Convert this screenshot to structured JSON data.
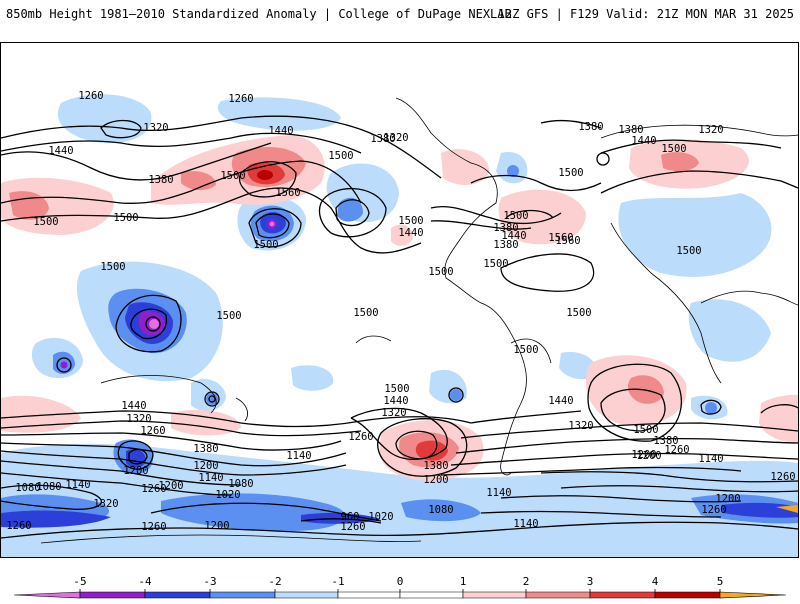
{
  "header": {
    "title": "850mb Height 1981–2010 Standardized Anomaly | College of DuPage NEXLAB",
    "run": "12Z GFS | F129 Valid: 21Z MON MAR 31 2025"
  },
  "colors": {
    "neg5": "#e070e0",
    "neg4": "#8f1fc8",
    "neg3": "#2c3fd8",
    "neg2": "#5b8ff0",
    "neg1": "#bcdcfc",
    "pos1": "#fcd0d0",
    "pos2": "#f08a8a",
    "pos3": "#e03a3a",
    "pos4": "#b80000",
    "pos5": "#f5a623",
    "line": "#000000"
  },
  "colorbar": {
    "ticks": [
      "-5",
      "-4",
      "-3",
      "-2",
      "-1",
      "0",
      "1",
      "2",
      "3",
      "4",
      "5"
    ]
  },
  "contour_labels": [
    {
      "text": "1260"
    },
    {
      "text": "1260"
    },
    {
      "text": "1320"
    },
    {
      "text": "1440"
    },
    {
      "text": "1380"
    },
    {
      "text": "1320"
    },
    {
      "text": "1380"
    },
    {
      "text": "1380"
    },
    {
      "text": "1440"
    },
    {
      "text": "1320"
    },
    {
      "text": "1440"
    },
    {
      "text": "1380"
    },
    {
      "text": "1500"
    },
    {
      "text": "1560"
    },
    {
      "text": "1500"
    },
    {
      "text": "1500"
    },
    {
      "text": "1560"
    },
    {
      "text": "1380"
    },
    {
      "text": "1500"
    },
    {
      "text": "1440"
    },
    {
      "text": "1440"
    },
    {
      "text": "1380"
    },
    {
      "text": "1500"
    },
    {
      "text": "1500"
    },
    {
      "text": "1560"
    },
    {
      "text": "1500"
    },
    {
      "text": "1500"
    },
    {
      "text": "1500"
    },
    {
      "text": "1500"
    },
    {
      "text": "1500"
    },
    {
      "text": "1500"
    },
    {
      "text": "1500"
    },
    {
      "text": "1500"
    },
    {
      "text": "1500"
    },
    {
      "text": "1500"
    },
    {
      "text": "1500"
    },
    {
      "text": "1440"
    },
    {
      "text": "1320"
    },
    {
      "text": "1260"
    },
    {
      "text": "1380"
    },
    {
      "text": "1500"
    },
    {
      "text": "1440"
    },
    {
      "text": "1320"
    },
    {
      "text": "1260"
    },
    {
      "text": "1440"
    },
    {
      "text": "1320"
    },
    {
      "text": "1500"
    },
    {
      "text": "1380"
    },
    {
      "text": "1260"
    },
    {
      "text": "1200"
    },
    {
      "text": "1140"
    },
    {
      "text": "1080"
    },
    {
      "text": "1140"
    },
    {
      "text": "1200"
    },
    {
      "text": "1080"
    },
    {
      "text": "1260"
    },
    {
      "text": "1320"
    },
    {
      "text": "1200"
    },
    {
      "text": "1140"
    },
    {
      "text": "1020"
    },
    {
      "text": "1080"
    },
    {
      "text": "1140"
    },
    {
      "text": "1200"
    },
    {
      "text": "1380"
    },
    {
      "text": "1200"
    },
    {
      "text": "1140"
    },
    {
      "text": "1200"
    },
    {
      "text": "1260"
    },
    {
      "text": "1260"
    },
    {
      "text": "1200"
    },
    {
      "text": "1020"
    },
    {
      "text": "960"
    },
    {
      "text": "1080"
    },
    {
      "text": "1260"
    },
    {
      "text": "1200"
    },
    {
      "text": "1140"
    },
    {
      "text": "1260"
    },
    {
      "text": "1260"
    }
  ]
}
